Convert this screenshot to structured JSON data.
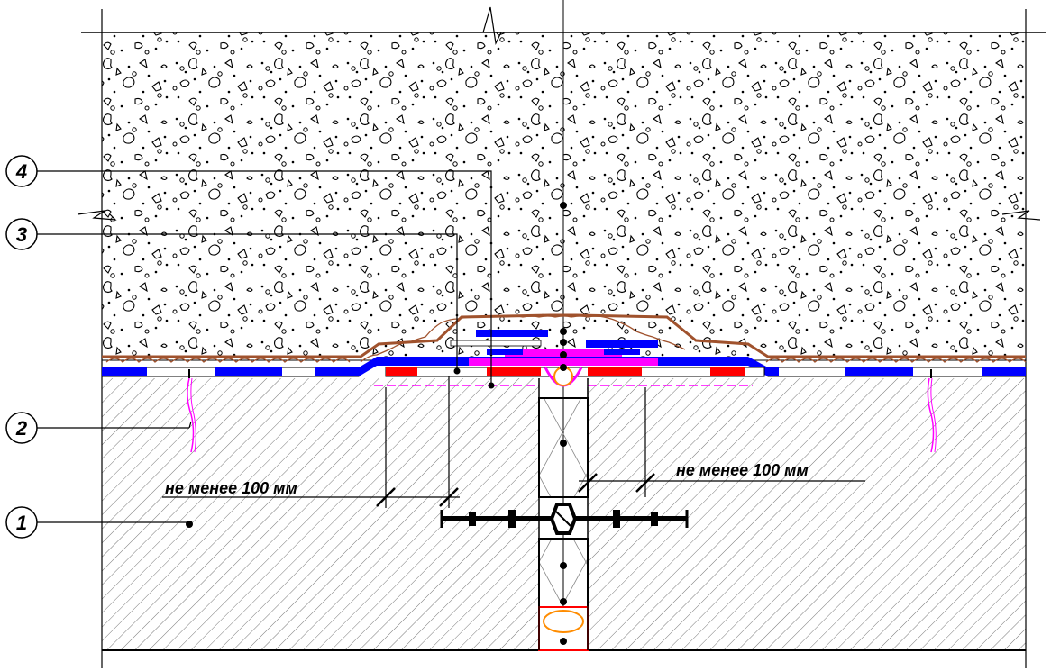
{
  "callouts": [
    {
      "id": "1",
      "label": "1"
    },
    {
      "id": "2",
      "label": "2"
    },
    {
      "id": "3",
      "label": "3"
    },
    {
      "id": "4",
      "label": "4"
    }
  ],
  "dimensions": {
    "left_note": "не менее 100 мм",
    "right_note": "не менее 100 мм"
  },
  "colors": {
    "line": "#000000",
    "membrane_blue": "#0000ff",
    "membrane_red": "#ff0000",
    "membrane_magenta": "#ff00ff",
    "brown": "#a0522d",
    "orange": "#ff8c00",
    "hatch": "#555555"
  }
}
